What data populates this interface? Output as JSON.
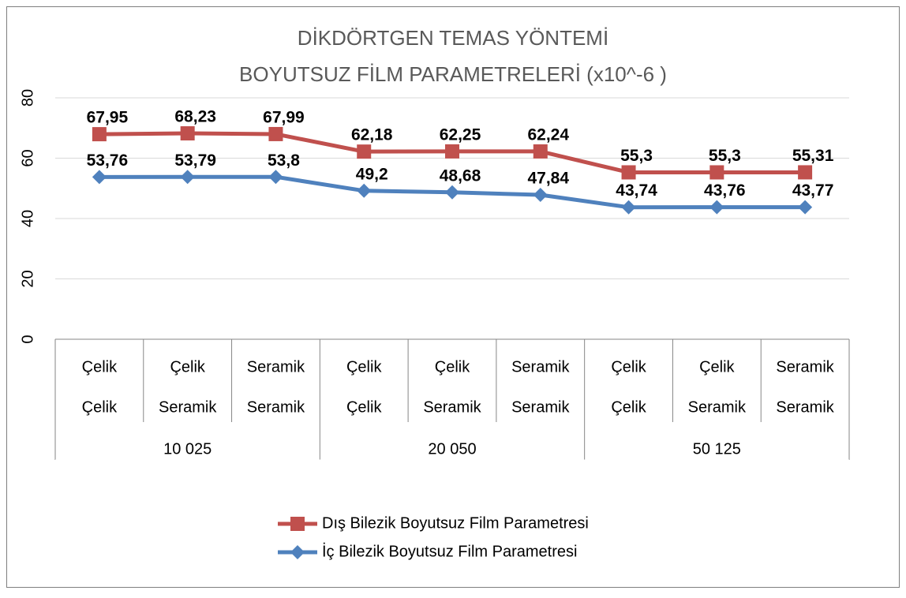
{
  "chart_data": {
    "type": "line",
    "title": [
      "DİKDÖRTGEN TEMAS YÖNTEMİ",
      "BOYUTSUZ FİLM PARAMETRELERİ (x10^-6 )"
    ],
    "categories": [
      [
        "Çelik",
        "Çelik"
      ],
      [
        "Çelik",
        "Seramik"
      ],
      [
        "Seramik",
        "Seramik"
      ],
      [
        "Çelik",
        "Çelik"
      ],
      [
        "Çelik",
        "Seramik"
      ],
      [
        "Seramik",
        "Seramik"
      ],
      [
        "Çelik",
        "Çelik"
      ],
      [
        "Çelik",
        "Seramik"
      ],
      [
        "Seramik",
        "Seramik"
      ]
    ],
    "category_groups": [
      "10 025",
      "20 050",
      "50 125"
    ],
    "series": [
      {
        "name": "Dış Bilezik Boyutsuz Film Parametresi",
        "color": "#c0504d",
        "marker": "square",
        "values": [
          67.95,
          68.23,
          67.99,
          62.18,
          62.25,
          62.24,
          55.3,
          55.3,
          55.31
        ],
        "value_labels": [
          "67,95",
          "68,23",
          "67,99",
          "62,18",
          "62,25",
          "62,24",
          "55,3",
          "55,3",
          "55,31"
        ]
      },
      {
        "name": "İç Bilezik Boyutsuz Film Parametresi",
        "color": "#4f81bd",
        "marker": "diamond",
        "values": [
          53.76,
          53.79,
          53.8,
          49.2,
          48.68,
          47.84,
          43.74,
          43.76,
          43.77
        ],
        "value_labels": [
          "53,76",
          "53,79",
          "53,8",
          "49,2",
          "48,68",
          "47,84",
          "43,74",
          "43,76",
          "43,77"
        ]
      }
    ],
    "ylim": [
      0,
      80
    ],
    "yticks": [
      0,
      20,
      40,
      60,
      80
    ],
    "grid": true,
    "legend": "bottom"
  }
}
